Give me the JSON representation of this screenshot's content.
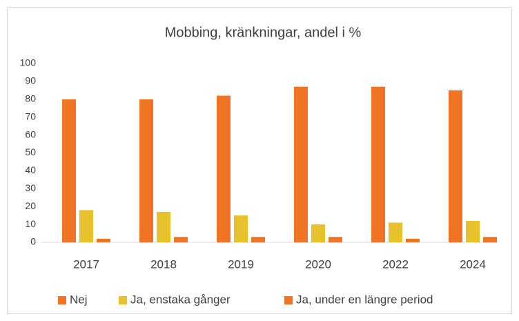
{
  "chart_data": {
    "type": "bar",
    "title": "Mobbing, kränkningar, andel i %",
    "categories": [
      "2017",
      "2018",
      "2019",
      "2020",
      "2022",
      "2024"
    ],
    "series": [
      {
        "name": "Nej",
        "color": "#f07423",
        "values": [
          80,
          80,
          82,
          87,
          87,
          85
        ]
      },
      {
        "name": "Ja, enstaka gånger",
        "color": "#e8c12c",
        "values": [
          18,
          17,
          15,
          10,
          11,
          12
        ]
      },
      {
        "name": "Ja, under en längre period",
        "color": "#f07423",
        "values": [
          2,
          3,
          3,
          3,
          2,
          3
        ]
      }
    ],
    "ylim": [
      0,
      100
    ],
    "yticks": [
      0,
      10,
      20,
      30,
      40,
      50,
      60,
      70,
      80,
      90,
      100
    ],
    "grid": false,
    "legend": "bottom"
  }
}
